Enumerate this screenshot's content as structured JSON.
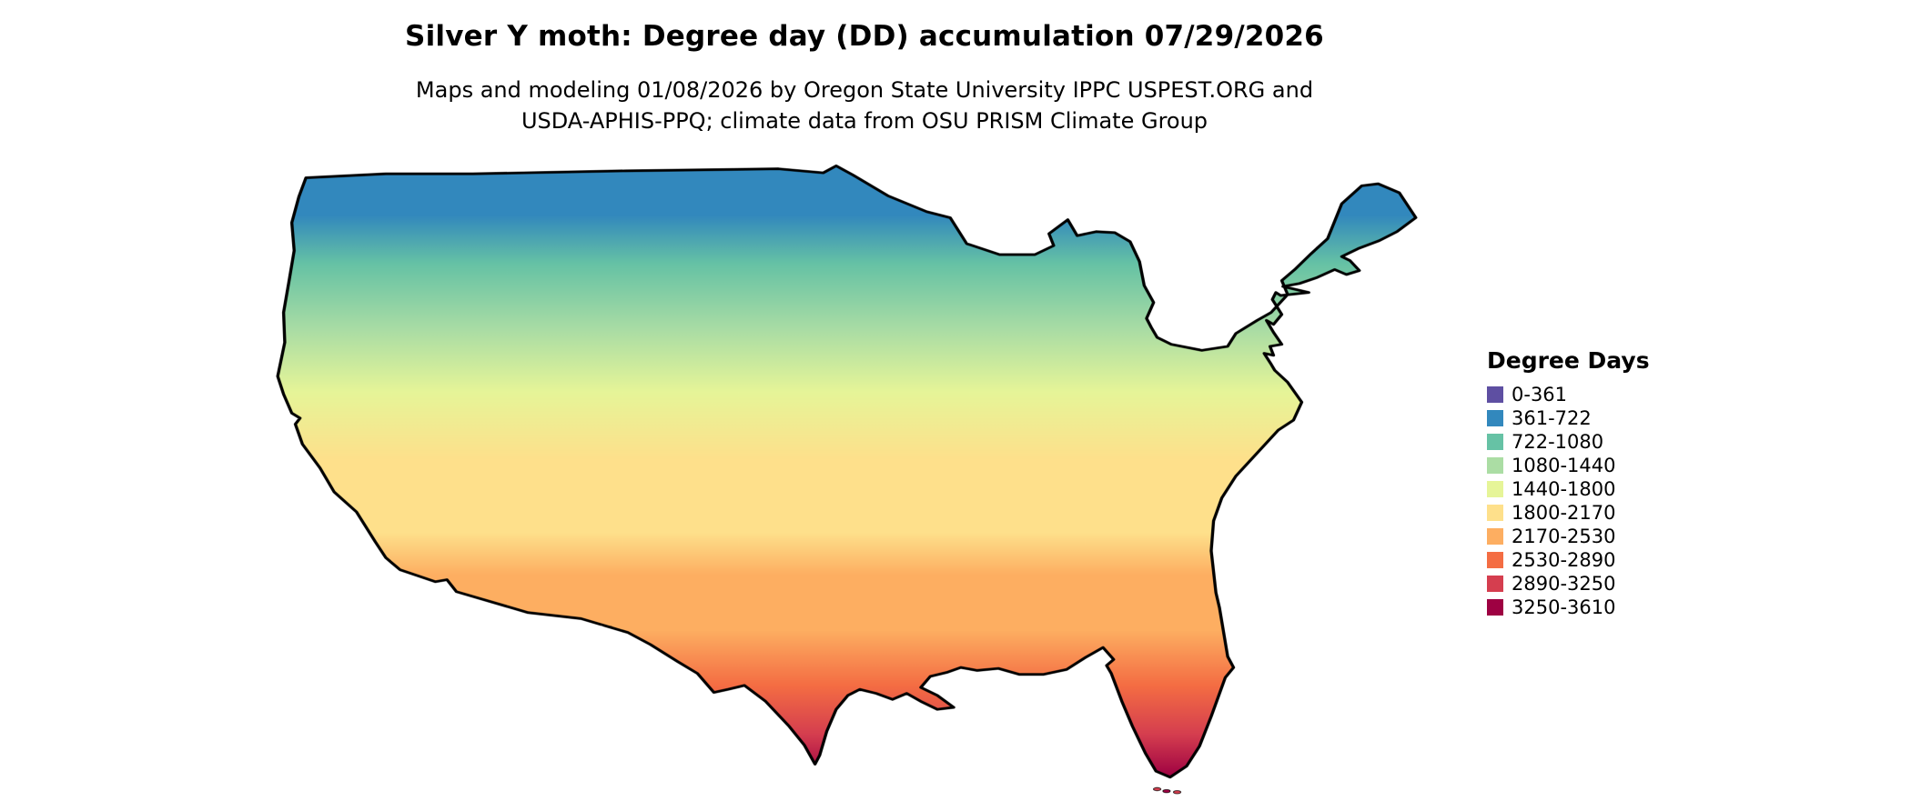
{
  "title": "Silver Y moth: Degree day (DD) accumulation 07/29/2026",
  "subtitle": {
    "line1": "Maps and modeling 01/08/2026 by Oregon State University IPPC USPEST.ORG and",
    "line2": "USDA-APHIS-PPQ; climate data from OSU PRISM Climate Group"
  },
  "legend": {
    "title": "Degree Days",
    "items": [
      {
        "label": "0-361",
        "color": "#5e4fa2"
      },
      {
        "label": "361-722",
        "color": "#3288bd"
      },
      {
        "label": "722-1080",
        "color": "#66c2a5"
      },
      {
        "label": "1080-1440",
        "color": "#abdda4"
      },
      {
        "label": "1440-1800",
        "color": "#e6f598"
      },
      {
        "label": "1800-2170",
        "color": "#fee08b"
      },
      {
        "label": "2170-2530",
        "color": "#fdae61"
      },
      {
        "label": "2530-2890",
        "color": "#f46d43"
      },
      {
        "label": "2890-3250",
        "color": "#d53e4f"
      },
      {
        "label": "3250-3610",
        "color": "#9e0142"
      }
    ]
  }
}
